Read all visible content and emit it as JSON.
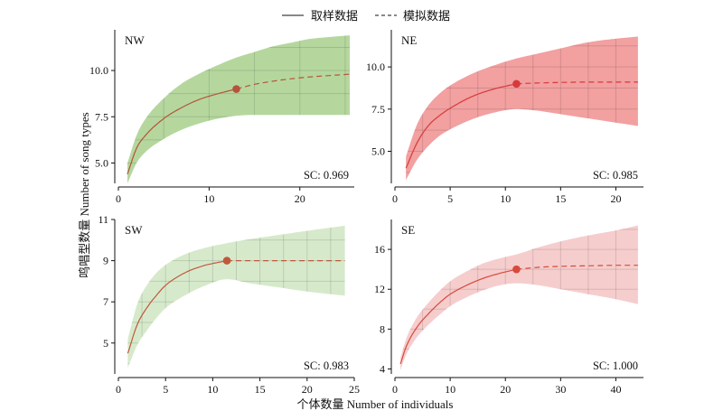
{
  "legend": {
    "sampled": "取样数据",
    "extrapolated": "模拟数据"
  },
  "axes": {
    "xlabel": "个体数量 Number of individuals",
    "ylabel": "鸣唱型数量 Number of song types"
  },
  "chart_data": [
    {
      "type": "line",
      "title": "NW",
      "annotation": "SC: 0.969",
      "color": "#a8d08d",
      "curve_color": "#b5533c",
      "xlim": [
        0,
        26
      ],
      "ylim": [
        3.9,
        12.2
      ],
      "xticks": [
        0,
        10,
        20
      ],
      "yticks": [
        5.0,
        7.5,
        10.0
      ],
      "ytick_labels": [
        "5.0",
        "7.5",
        "10.0"
      ],
      "reference_point": {
        "x": 13,
        "y": 9.0
      },
      "series": [
        {
          "style": "solid",
          "x": [
            1,
            2,
            3,
            5,
            7,
            9,
            11,
            13
          ],
          "y": [
            4.4,
            5.8,
            6.5,
            7.4,
            8.0,
            8.45,
            8.75,
            9.0
          ]
        },
        {
          "style": "dashed",
          "x": [
            13,
            15,
            17,
            19,
            21,
            23,
            25.5
          ],
          "y": [
            9.0,
            9.25,
            9.42,
            9.55,
            9.65,
            9.72,
            9.8
          ]
        }
      ],
      "band": {
        "x": [
          1,
          2,
          3,
          5,
          7,
          9,
          11,
          13,
          15,
          17,
          19,
          21,
          23,
          25.5
        ],
        "lower": [
          3.9,
          5.0,
          5.6,
          6.3,
          6.8,
          7.15,
          7.4,
          7.55,
          7.6,
          7.6,
          7.6,
          7.6,
          7.6,
          7.6
        ],
        "upper": [
          5.0,
          6.5,
          7.4,
          8.5,
          9.3,
          9.85,
          10.3,
          10.7,
          11.0,
          11.3,
          11.5,
          11.7,
          11.8,
          11.9
        ]
      }
    },
    {
      "type": "line",
      "title": "NE",
      "annotation": "SC: 0.985",
      "color": "#f08f8f",
      "curve_color": "#d73a3a",
      "xlim": [
        0,
        22.5
      ],
      "ylim": [
        3.1,
        12.2
      ],
      "xticks": [
        0,
        5,
        10,
        15,
        20
      ],
      "yticks": [
        5.0,
        7.5,
        10.0
      ],
      "ytick_labels": [
        "5.0",
        "7.5",
        "10.0"
      ],
      "reference_point": {
        "x": 11,
        "y": 9.0
      },
      "series": [
        {
          "style": "solid",
          "x": [
            1,
            2,
            3,
            4,
            5,
            7,
            9,
            11
          ],
          "y": [
            4.0,
            5.5,
            6.5,
            7.1,
            7.55,
            8.25,
            8.7,
            9.0
          ]
        },
        {
          "style": "dashed",
          "x": [
            11,
            13,
            15,
            17,
            19,
            22
          ],
          "y": [
            9.0,
            9.05,
            9.08,
            9.1,
            9.1,
            9.1
          ]
        }
      ],
      "band": {
        "x": [
          1,
          2,
          3,
          4,
          5,
          7,
          9,
          11,
          13,
          15,
          17,
          19,
          22
        ],
        "lower": [
          3.3,
          4.5,
          5.3,
          5.9,
          6.3,
          6.9,
          7.3,
          7.5,
          7.4,
          7.2,
          7.0,
          6.8,
          6.5
        ],
        "upper": [
          4.7,
          6.6,
          7.7,
          8.4,
          8.9,
          9.6,
          10.1,
          10.5,
          10.8,
          11.1,
          11.4,
          11.6,
          11.8
        ]
      }
    },
    {
      "type": "line",
      "title": "SW",
      "annotation": "SC: 0.983",
      "color": "#cfe6c2",
      "curve_color": "#c0583e",
      "xlim": [
        0,
        25
      ],
      "ylim": [
        3.5,
        11
      ],
      "xticks": [
        0,
        5,
        10,
        15,
        20,
        25
      ],
      "yticks": [
        5,
        7,
        9,
        11
      ],
      "ytick_labels": [
        "5",
        "7",
        "9",
        "11"
      ],
      "reference_point": {
        "x": 11.5,
        "y": 9.0
      },
      "series": [
        {
          "style": "solid",
          "x": [
            1,
            2,
            3,
            4,
            5,
            7,
            9,
            11.5
          ],
          "y": [
            4.5,
            5.9,
            6.7,
            7.3,
            7.8,
            8.4,
            8.75,
            9.0
          ]
        },
        {
          "style": "dashed",
          "x": [
            11.5,
            14,
            17,
            20,
            24
          ],
          "y": [
            9.0,
            9.0,
            9.0,
            9.0,
            9.0
          ]
        }
      ],
      "band": {
        "x": [
          1,
          2,
          3,
          4,
          5,
          7,
          9,
          11.5,
          14,
          17,
          20,
          24
        ],
        "lower": [
          3.8,
          4.9,
          5.6,
          6.2,
          6.7,
          7.3,
          7.75,
          8.1,
          7.9,
          7.7,
          7.5,
          7.3
        ],
        "upper": [
          5.2,
          6.9,
          7.8,
          8.4,
          8.8,
          9.3,
          9.6,
          9.85,
          10.05,
          10.25,
          10.45,
          10.7
        ]
      }
    },
    {
      "type": "line",
      "title": "SE",
      "annotation": "SC: 1.000",
      "color": "#f4c4c4",
      "curve_color": "#d74a3a",
      "xlim": [
        0,
        45
      ],
      "ylim": [
        3.5,
        19
      ],
      "xticks": [
        0,
        10,
        20,
        30,
        40
      ],
      "yticks": [
        4,
        8,
        12,
        16
      ],
      "ytick_labels": [
        "4",
        "8",
        "12",
        "16"
      ],
      "reference_point": {
        "x": 22,
        "y": 14.0
      },
      "series": [
        {
          "style": "solid",
          "x": [
            1,
            2,
            4,
            6,
            8,
            10,
            13,
            16,
            19,
            22
          ],
          "y": [
            4.5,
            6.2,
            8.2,
            9.5,
            10.6,
            11.5,
            12.4,
            13.1,
            13.6,
            14.0
          ]
        },
        {
          "style": "dashed",
          "x": [
            22,
            26,
            30,
            35,
            40,
            44
          ],
          "y": [
            14.0,
            14.2,
            14.3,
            14.35,
            14.4,
            14.4
          ]
        }
      ],
      "band": {
        "x": [
          1,
          2,
          4,
          6,
          8,
          10,
          13,
          16,
          19,
          22,
          26,
          30,
          35,
          40,
          44
        ],
        "lower": [
          3.9,
          5.4,
          7.2,
          8.4,
          9.4,
          10.3,
          11.2,
          11.9,
          12.4,
          12.6,
          12.4,
          12.0,
          11.5,
          11.0,
          10.5
        ],
        "upper": [
          5.1,
          7.0,
          9.2,
          10.6,
          11.8,
          12.8,
          13.8,
          14.6,
          15.1,
          15.5,
          16.2,
          16.8,
          17.4,
          17.9,
          18.4
        ]
      }
    }
  ]
}
